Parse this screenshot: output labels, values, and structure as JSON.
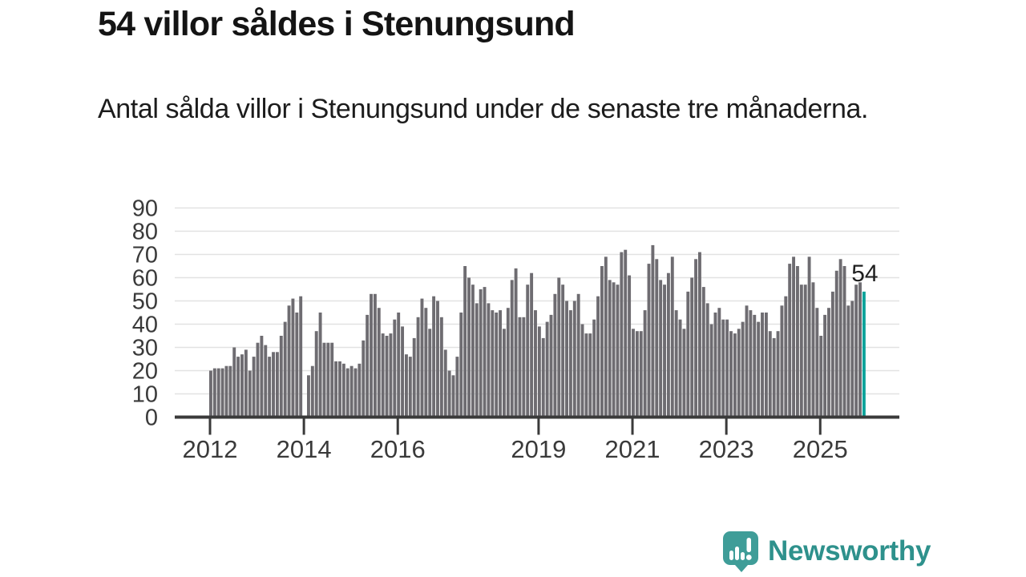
{
  "header": {
    "title": "54 villor såldes i Stenungsund",
    "subtitle": "Antal sålda villor i Stenungsund under de senaste tre månaderna."
  },
  "annotation": {
    "latest_value_label": "54"
  },
  "branding": {
    "wordmark": "Newsworthy",
    "logo_icon": "speech-bubble-bar-chart-icon"
  },
  "colors": {
    "background": "#ffffff",
    "title_text": "#141414",
    "body_text": "#1c1c1c",
    "axis_line": "#3a3a3a",
    "axis_label": "#3a3a3a",
    "gridline": "#e2e2e2",
    "bar": "#6e6c71",
    "highlight_bar": "#0ba29a",
    "logo_teal": "#3f9d98",
    "wordmark_teal": "#2e918c"
  },
  "chart_data": {
    "type": "bar",
    "title": "54 villor såldes i Stenungsund",
    "xlabel": "",
    "ylabel": "",
    "x_unit": "month",
    "x_start": "2012-01",
    "x_end": "2025-12",
    "ylim": [
      0,
      90
    ],
    "y_ticks": [
      0,
      10,
      20,
      30,
      40,
      50,
      60,
      70,
      80,
      90
    ],
    "x_tick_labels": [
      "2012",
      "2014",
      "2016",
      "2019",
      "2021",
      "2023",
      "2025"
    ],
    "x_tick_month_offsets": [
      0,
      24,
      48,
      84,
      108,
      132,
      156
    ],
    "grid": true,
    "legend": false,
    "highlight_last_bar": true,
    "highlight_value": 54,
    "note": "one bar per month; 2014-01 has no bar (gap)",
    "values": [
      20,
      21,
      21,
      21,
      22,
      22,
      30,
      26,
      27,
      29,
      20,
      26,
      32,
      35,
      31,
      26,
      28,
      28,
      35,
      41,
      48,
      51,
      45,
      52,
      0,
      18,
      22,
      37,
      45,
      32,
      32,
      32,
      24,
      24,
      23,
      21,
      22,
      21,
      23,
      33,
      44,
      53,
      53,
      47,
      36,
      35,
      36,
      42,
      45,
      39,
      27,
      26,
      34,
      43,
      51,
      47,
      38,
      52,
      50,
      43,
      29,
      20,
      18,
      26,
      45,
      65,
      60,
      57,
      49,
      55,
      56,
      49,
      46,
      45,
      46,
      38,
      47,
      59,
      64,
      43,
      43,
      57,
      62,
      46,
      39,
      34,
      41,
      44,
      53,
      60,
      57,
      50,
      46,
      50,
      53,
      40,
      36,
      36,
      42,
      52,
      65,
      69,
      59,
      58,
      57,
      71,
      72,
      61,
      38,
      37,
      37,
      46,
      66,
      74,
      68,
      59,
      57,
      62,
      69,
      46,
      42,
      38,
      54,
      60,
      68,
      71,
      56,
      49,
      40,
      45,
      47,
      42,
      42,
      37,
      36,
      38,
      41,
      48,
      46,
      44,
      41,
      45,
      45,
      37,
      34,
      37,
      48,
      52,
      66,
      69,
      65,
      57,
      57,
      69,
      58,
      47,
      35,
      44,
      47,
      54,
      63,
      68,
      65,
      48,
      50,
      57,
      58,
      54
    ]
  }
}
